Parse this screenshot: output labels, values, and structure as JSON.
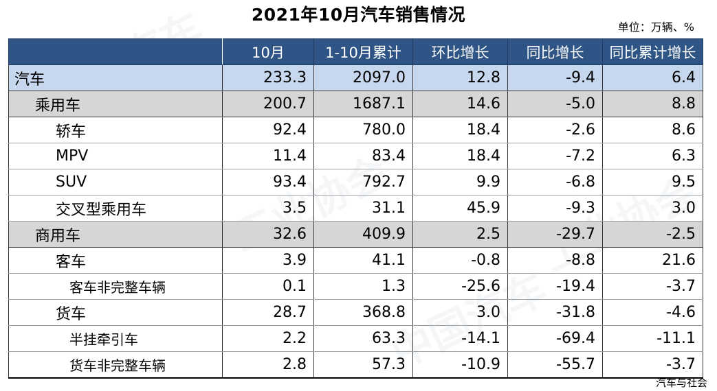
{
  "title": "2021年10月汽车销售情况",
  "unit": "单位：万辆、%",
  "credit": "汽车与社会",
  "headers": [
    "",
    "10月",
    "1-10月累计",
    "环比增长",
    "同比增长",
    "同比累计增长"
  ],
  "rows": [
    {
      "name": "汽车",
      "level": 0,
      "values": [
        "233.3",
        "2097.0",
        "12.8",
        "-9.4",
        "6.4"
      ]
    },
    {
      "name": "乘用车",
      "level": 1,
      "values": [
        "200.7",
        "1687.1",
        "14.6",
        "-5.0",
        "8.8"
      ]
    },
    {
      "name": "轿车",
      "level": 2,
      "values": [
        "92.4",
        "780.0",
        "18.4",
        "-2.6",
        "8.6"
      ]
    },
    {
      "name": "MPV",
      "level": 2,
      "values": [
        "11.4",
        "83.4",
        "18.4",
        "-7.2",
        "6.3"
      ]
    },
    {
      "name": "SUV",
      "level": 2,
      "values": [
        "93.4",
        "792.7",
        "9.9",
        "-6.8",
        "9.5"
      ]
    },
    {
      "name": "交叉型乘用车",
      "level": 2,
      "values": [
        "3.5",
        "31.1",
        "45.9",
        "-9.3",
        "3.0"
      ]
    },
    {
      "name": "商用车",
      "level": 1,
      "values": [
        "32.6",
        "409.9",
        "2.5",
        "-29.7",
        "-2.5"
      ]
    },
    {
      "name": "客车",
      "level": 2,
      "values": [
        "3.9",
        "41.1",
        "-0.8",
        "-8.8",
        "21.6"
      ]
    },
    {
      "name": "客车非完整车辆",
      "level": 3,
      "values": [
        "0.1",
        "1.3",
        "-25.6",
        "-19.4",
        "-3.7"
      ]
    },
    {
      "name": "货车",
      "level": 2,
      "values": [
        "28.7",
        "368.8",
        "3.0",
        "-31.8",
        "-4.6"
      ]
    },
    {
      "name": "半挂牵引车",
      "level": 3,
      "values": [
        "2.2",
        "63.3",
        "-14.1",
        "-69.4",
        "-11.1"
      ]
    },
    {
      "name": "货车非完整车辆",
      "level": 3,
      "values": [
        "2.8",
        "57.3",
        "-10.9",
        "-55.7",
        "-3.7"
      ]
    }
  ]
}
